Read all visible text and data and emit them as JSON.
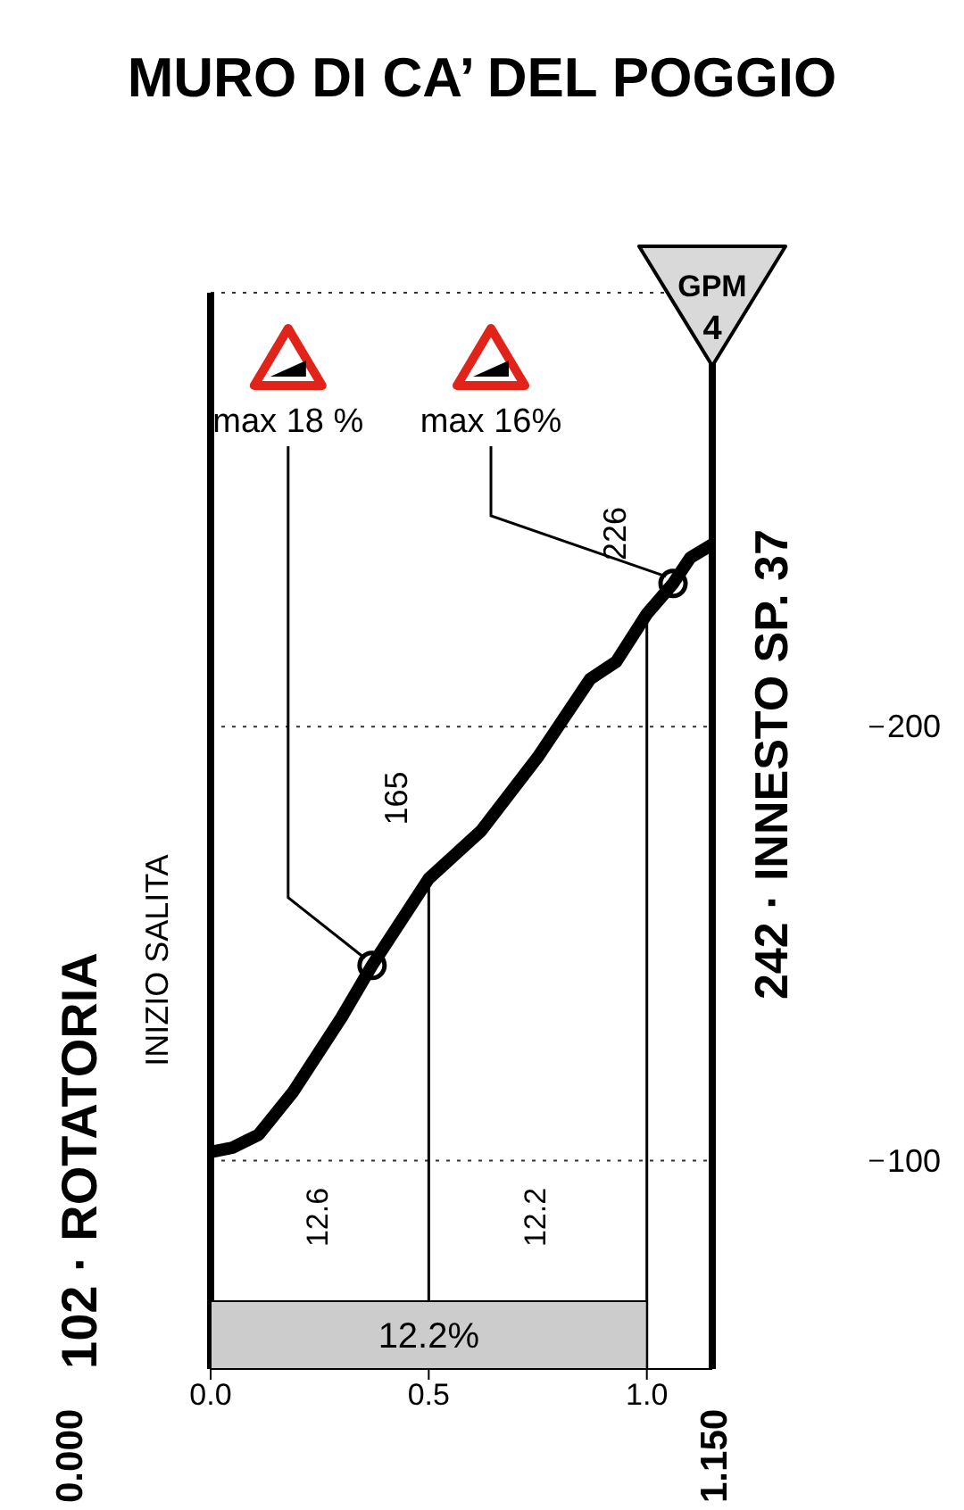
{
  "chart_data": {
    "type": "line",
    "title": "MURO DI CA’ DEL POGGIO",
    "x": [
      0,
      0.05,
      0.11,
      0.19,
      0.3,
      0.37,
      0.5,
      0.62,
      0.75,
      0.87,
      0.93,
      1.0,
      1.06,
      1.1,
      1.15
    ],
    "series": [
      {
        "color": "#000000",
        "values": [
          102,
          103,
          106,
          116,
          133,
          145,
          165,
          176,
          193,
          211,
          215,
          226,
          233,
          239,
          242
        ]
      }
    ],
    "xlim": [
      0,
      1.15
    ],
    "xticks": [
      {
        "value": 0,
        "label": "0.0"
      },
      0.5,
      {
        "value": 1,
        "label": "1.0"
      }
    ],
    "ylim": [
      52,
      300
    ],
    "yticks": [
      100,
      200
    ],
    "grid": "y",
    "ref_lines": [
      {
        "axis": "x",
        "value": 0.5
      },
      {
        "axis": "x",
        "value": 1.0
      },
      {
        "axis": "x",
        "value": 0
      }
    ],
    "bands": [
      {
        "axis": "x",
        "from": 0,
        "to": 1.0,
        "label": "12.2%",
        "color": "#cccccc"
      }
    ],
    "annotations": [
      {
        "text": "max 18 %",
        "x": 0.37,
        "y": 145
      },
      {
        "text": "max 16%",
        "x": 1.06,
        "y": 233
      },
      {
        "text": "165",
        "x": 0.5,
        "y": 165
      },
      {
        "text": "226",
        "x": 1.0,
        "y": 226
      },
      "12.6",
      "12.2",
      {
        "text": "102 · ROTATORIA",
        "x": 0,
        "y": 102
      },
      "INIZIO SALITA",
      {
        "text": "242 · INNESTO SP. 37",
        "x": 1.15,
        "y": 242
      },
      "GPM",
      "4",
      "0.000",
      "1.150"
    ]
  }
}
